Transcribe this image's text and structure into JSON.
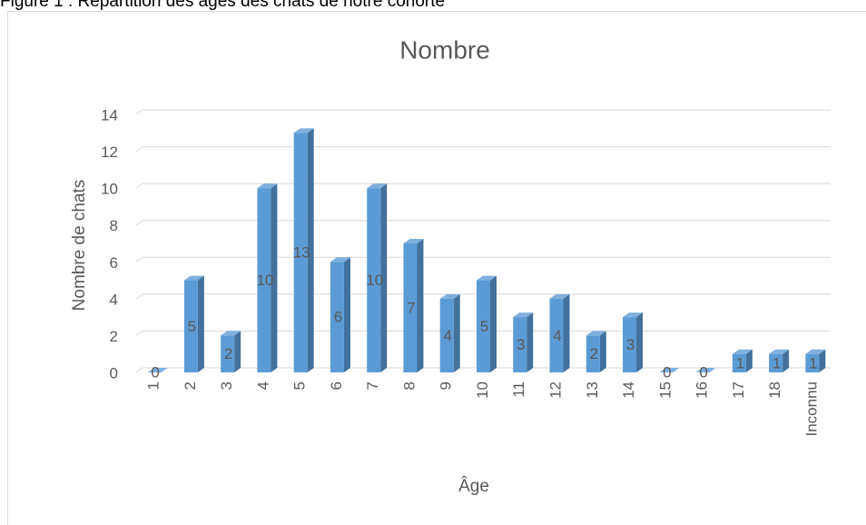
{
  "caption": "Figure 1 : Répartition des âges des chats de notre cohorte",
  "chart_data": {
    "type": "bar3d",
    "title": "Nombre",
    "x_label": "Âge",
    "y_label": "Nombre de chats",
    "categories": [
      "1",
      "2",
      "3",
      "4",
      "5",
      "6",
      "7",
      "8",
      "9",
      "10",
      "11",
      "12",
      "13",
      "14",
      "15",
      "16",
      "17",
      "18",
      "Inconnu"
    ],
    "values": [
      0,
      5,
      2,
      10,
      13,
      6,
      10,
      7,
      4,
      5,
      3,
      4,
      2,
      3,
      0,
      0,
      1,
      1,
      1
    ],
    "color": "#5b9bd5",
    "ylim": [
      0,
      14
    ],
    "yticks": [
      0,
      2,
      4,
      6,
      8,
      10,
      12,
      14
    ],
    "grid": true
  }
}
